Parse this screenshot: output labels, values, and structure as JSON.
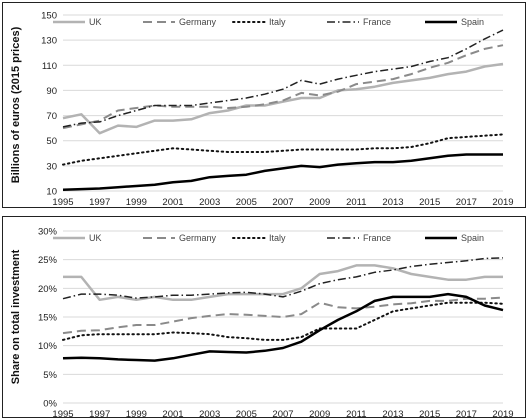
{
  "chart_data": [
    {
      "type": "line",
      "title": "",
      "xlabel": "",
      "ylabel": "Billions of euros (2015 prices)",
      "x": [
        1995,
        1996,
        1997,
        1998,
        1999,
        2000,
        2001,
        2002,
        2003,
        2004,
        2005,
        2006,
        2007,
        2008,
        2009,
        2010,
        2011,
        2012,
        2013,
        2014,
        2015,
        2016,
        2017,
        2018,
        2019
      ],
      "xticks": [
        "1995",
        "1997",
        "1999",
        "2001",
        "2003",
        "2005",
        "2007",
        "2009",
        "2011",
        "2013",
        "2015",
        "2017",
        "2019"
      ],
      "yticks": [
        "10",
        "30",
        "50",
        "70",
        "90",
        "110",
        "130",
        "150"
      ],
      "ylim": [
        10,
        150
      ],
      "grid": true,
      "legend_position": "top",
      "series": [
        {
          "name": "UK",
          "color": "#b3b3b3",
          "dash": "solid",
          "width": 2.5,
          "values": [
            68,
            71,
            56,
            62,
            61,
            66,
            66,
            67,
            72,
            74,
            78,
            78,
            81,
            84,
            84,
            90,
            91,
            93,
            96,
            98,
            100,
            103,
            105,
            109,
            111
          ]
        },
        {
          "name": "Germany",
          "color": "#8a8a8a",
          "dash": "longdash",
          "width": 2,
          "values": [
            60,
            63,
            66,
            74,
            76,
            78,
            77,
            77,
            77,
            76,
            77,
            79,
            82,
            88,
            86,
            89,
            95,
            97,
            99,
            103,
            108,
            112,
            118,
            123,
            126
          ]
        },
        {
          "name": "Italy",
          "color": "#111111",
          "dash": "dot",
          "width": 2,
          "values": [
            31,
            34,
            36,
            38,
            40,
            42,
            44,
            43,
            42,
            41,
            41,
            41,
            42,
            43,
            43,
            43,
            43,
            44,
            44,
            45,
            48,
            52,
            53,
            54,
            55
          ]
        },
        {
          "name": "France",
          "color": "#222222",
          "dash": "dashdot",
          "width": 1.5,
          "values": [
            61,
            64,
            65,
            70,
            74,
            78,
            78,
            78,
            80,
            82,
            84,
            87,
            91,
            98,
            95,
            99,
            102,
            105,
            107,
            109,
            113,
            116,
            123,
            131,
            138
          ]
        },
        {
          "name": "Spain",
          "color": "#000000",
          "dash": "solid",
          "width": 2.5,
          "values": [
            11,
            11.5,
            12,
            13,
            14,
            15,
            17,
            18,
            21,
            22,
            23,
            26,
            28,
            30,
            29,
            31,
            32,
            33,
            33,
            34,
            36,
            38,
            39,
            39,
            39
          ]
        }
      ]
    },
    {
      "type": "line",
      "title": "",
      "xlabel": "",
      "ylabel": "Share on total investment",
      "x": [
        1995,
        1996,
        1997,
        1998,
        1999,
        2000,
        2001,
        2002,
        2003,
        2004,
        2005,
        2006,
        2007,
        2008,
        2009,
        2010,
        2011,
        2012,
        2013,
        2014,
        2015,
        2016,
        2017,
        2018,
        2019
      ],
      "xticks": [
        "1995",
        "1997",
        "1999",
        "2001",
        "2003",
        "2005",
        "2007",
        "2009",
        "2011",
        "2013",
        "2015",
        "2017",
        "2019"
      ],
      "yticks": [
        "0%",
        "5%",
        "10%",
        "15%",
        "20%",
        "25%",
        "30%"
      ],
      "ylim": [
        0,
        30
      ],
      "unit": "%",
      "grid": true,
      "legend_position": "top",
      "series": [
        {
          "name": "UK",
          "color": "#b3b3b3",
          "dash": "solid",
          "width": 2.5,
          "values": [
            22,
            22,
            18,
            18.5,
            18,
            18.5,
            18,
            18,
            18.5,
            19,
            19,
            19,
            19,
            20,
            22.5,
            23,
            24,
            24,
            23.5,
            22.5,
            22,
            21.5,
            21.5,
            22,
            22
          ]
        },
        {
          "name": "Germany",
          "color": "#8a8a8a",
          "dash": "longdash",
          "width": 2,
          "values": [
            12.2,
            12.6,
            12.7,
            13.2,
            13.6,
            13.6,
            14.2,
            14.8,
            15.2,
            15.5,
            15.4,
            15.2,
            15.0,
            15.5,
            17.5,
            16.7,
            16.5,
            16.8,
            17.2,
            17.4,
            17.8,
            17.8,
            18.2,
            18.2,
            18.4
          ]
        },
        {
          "name": "Italy",
          "color": "#111111",
          "dash": "dot",
          "width": 2,
          "values": [
            11,
            11.8,
            12,
            12,
            12,
            12,
            12.3,
            12.2,
            12,
            11.5,
            11.3,
            11,
            11,
            11.5,
            13,
            13,
            13,
            14.5,
            16,
            16.5,
            17,
            17.5,
            17.5,
            17.5,
            17.3
          ]
        },
        {
          "name": "France",
          "color": "#222222",
          "dash": "dashdot",
          "width": 1.5,
          "values": [
            18.2,
            19,
            19,
            18.8,
            18.3,
            18.5,
            18.8,
            18.8,
            19,
            19.2,
            19.3,
            19,
            18.5,
            19.5,
            20.8,
            21.5,
            22,
            22.8,
            23.2,
            23.8,
            24.2,
            24.5,
            24.8,
            25.2,
            25.3
          ]
        },
        {
          "name": "Spain",
          "color": "#000000",
          "dash": "solid",
          "width": 2.5,
          "values": [
            7.8,
            7.9,
            7.8,
            7.6,
            7.5,
            7.4,
            7.8,
            8.4,
            9,
            8.9,
            8.8,
            9.1,
            9.6,
            10.7,
            12.7,
            14.5,
            16,
            17.8,
            18.5,
            18.5,
            18.5,
            19,
            18.5,
            17,
            16.2
          ]
        }
      ]
    }
  ]
}
